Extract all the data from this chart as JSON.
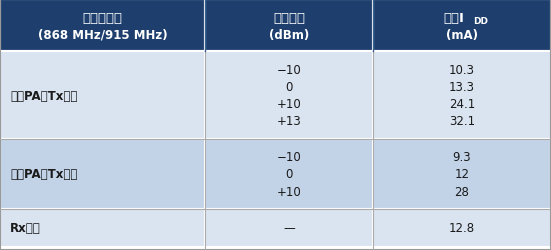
{
  "header_bg": "#1e3f6e",
  "header_text_color": "#ffffff",
  "row_bg_light": "#dae3f0",
  "row_bg_dark": "#c2d3e8",
  "border_color": "#ffffff",
  "col1_header_line1": "收发器状态",
  "col1_header_line2": "(868 MHz/915 MHz)",
  "col2_header_line1": "输出功率",
  "col2_header_line2": "(dBm)",
  "col3_header_line1": "典型I",
  "col3_header_sub": "DD",
  "col3_header_line2": "(mA)",
  "rows": [
    {
      "label": "单端PA，Tx模式",
      "power": [
        "−10",
        "0",
        "+10",
        "+13"
      ],
      "current": [
        "10.3",
        "13.3",
        "24.1",
        "32.1"
      ],
      "bg": "#dae3f0"
    },
    {
      "label": "差分PA，Tx模式",
      "power": [
        "−10",
        "0",
        "+10"
      ],
      "current": [
        "9.3",
        "12",
        "28"
      ],
      "bg": "#c2d3e8"
    },
    {
      "label": "Rx模式",
      "power": [
        "—"
      ],
      "current": [
        "12.8"
      ],
      "bg": "#dae3f0"
    }
  ],
  "figsize": [
    5.51,
    2.51
  ],
  "dpi": 100
}
